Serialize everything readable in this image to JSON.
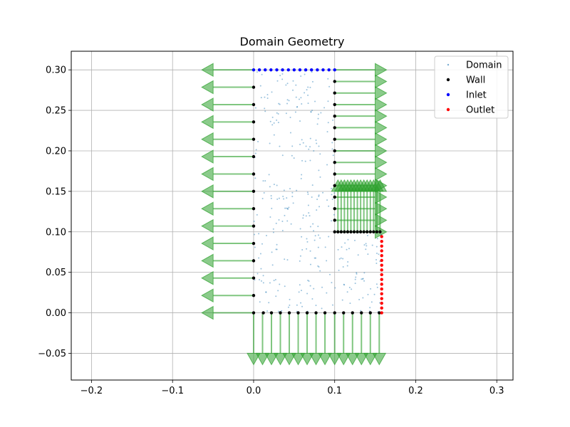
{
  "chart_data": {
    "type": "scatter",
    "title": "Domain Geometry",
    "xlabel": "",
    "ylabel": "",
    "xlim": [
      -0.225,
      0.32
    ],
    "ylim": [
      -0.083,
      0.323
    ],
    "xticks": [
      -0.2,
      -0.1,
      0.0,
      0.1,
      0.2,
      0.3
    ],
    "xtick_labels": [
      "−0.2",
      "−0.1",
      "0.0",
      "0.1",
      "0.2",
      "0.3"
    ],
    "yticks": [
      -0.05,
      0.0,
      0.05,
      0.1,
      0.15,
      0.2,
      0.25,
      0.3
    ],
    "ytick_labels": [
      "−0.05",
      "0.00",
      "0.05",
      "0.10",
      "0.15",
      "0.20",
      "0.25",
      "0.30"
    ],
    "grid": true,
    "legend_position": "top-right",
    "series": [
      {
        "name": "Domain",
        "color": "#1f77b4",
        "marker": "small-dot",
        "generated": true,
        "count": 320,
        "regions": [
          {
            "x": [
              0.0,
              0.1
            ],
            "y": [
              0.0,
              0.3
            ],
            "share": 0.8
          },
          {
            "x": [
              0.1,
              0.158
            ],
            "y": [
              0.0,
              0.1
            ],
            "share": 0.2
          }
        ]
      },
      {
        "name": "Wall",
        "color": "#000000",
        "marker": "dot",
        "points": [
          [
            0.0,
            0.0
          ],
          [
            0.0,
            0.0214
          ],
          [
            0.0,
            0.0429
          ],
          [
            0.0,
            0.0643
          ],
          [
            0.0,
            0.0857
          ],
          [
            0.0,
            0.1071
          ],
          [
            0.0,
            0.1286
          ],
          [
            0.0,
            0.15
          ],
          [
            0.0,
            0.1714
          ],
          [
            0.0,
            0.1929
          ],
          [
            0.0,
            0.2143
          ],
          [
            0.0,
            0.2357
          ],
          [
            0.0,
            0.2571
          ],
          [
            0.0,
            0.2786
          ],
          [
            0.1,
            0.2857
          ],
          [
            0.1,
            0.2714
          ],
          [
            0.1,
            0.2571
          ],
          [
            0.1,
            0.2429
          ],
          [
            0.1,
            0.2286
          ],
          [
            0.1,
            0.2143
          ],
          [
            0.1,
            0.2
          ],
          [
            0.1,
            0.1857
          ],
          [
            0.1,
            0.1714
          ],
          [
            0.1,
            0.1571
          ],
          [
            0.1,
            0.1429
          ],
          [
            0.1,
            0.1286
          ],
          [
            0.1,
            0.1143
          ],
          [
            0.1,
            0.1
          ],
          [
            0.104,
            0.1
          ],
          [
            0.108,
            0.1
          ],
          [
            0.112,
            0.1
          ],
          [
            0.116,
            0.1
          ],
          [
            0.12,
            0.1
          ],
          [
            0.124,
            0.1
          ],
          [
            0.128,
            0.1
          ],
          [
            0.132,
            0.1
          ],
          [
            0.136,
            0.1
          ],
          [
            0.14,
            0.1
          ],
          [
            0.144,
            0.1
          ],
          [
            0.148,
            0.1
          ],
          [
            0.152,
            0.1
          ],
          [
            0.156,
            0.1
          ],
          [
            0.012,
            0.0
          ],
          [
            0.022,
            0.0
          ],
          [
            0.033,
            0.0
          ],
          [
            0.044,
            0.0
          ],
          [
            0.055,
            0.0
          ],
          [
            0.066,
            0.0
          ],
          [
            0.077,
            0.0
          ],
          [
            0.088,
            0.0
          ],
          [
            0.1,
            0.0
          ],
          [
            0.111,
            0.0
          ],
          [
            0.122,
            0.0
          ],
          [
            0.133,
            0.0
          ],
          [
            0.144,
            0.0
          ],
          [
            0.155,
            0.0
          ]
        ]
      },
      {
        "name": "Inlet",
        "color": "#0000ff",
        "marker": "dot",
        "points": [
          [
            0.0,
            0.3
          ],
          [
            0.0071,
            0.3
          ],
          [
            0.0143,
            0.3
          ],
          [
            0.0214,
            0.3
          ],
          [
            0.0286,
            0.3
          ],
          [
            0.0357,
            0.3
          ],
          [
            0.0429,
            0.3
          ],
          [
            0.05,
            0.3
          ],
          [
            0.0571,
            0.3
          ],
          [
            0.0643,
            0.3
          ],
          [
            0.0714,
            0.3
          ],
          [
            0.0786,
            0.3
          ],
          [
            0.0857,
            0.3
          ],
          [
            0.0929,
            0.3
          ],
          [
            0.1,
            0.3
          ]
        ]
      },
      {
        "name": "Outlet",
        "color": "#ff0000",
        "marker": "dot",
        "points": [
          [
            0.158,
            0.0
          ],
          [
            0.158,
            0.0059
          ],
          [
            0.158,
            0.0118
          ],
          [
            0.158,
            0.0176
          ],
          [
            0.158,
            0.0235
          ],
          [
            0.158,
            0.0294
          ],
          [
            0.158,
            0.0353
          ],
          [
            0.158,
            0.0412
          ],
          [
            0.158,
            0.0471
          ],
          [
            0.158,
            0.0529
          ],
          [
            0.158,
            0.0588
          ],
          [
            0.158,
            0.0647
          ],
          [
            0.158,
            0.0706
          ],
          [
            0.158,
            0.0765
          ],
          [
            0.158,
            0.0824
          ],
          [
            0.158,
            0.0882
          ],
          [
            0.158,
            0.0941
          ]
        ]
      }
    ],
    "arrows": {
      "name": "normals",
      "color": "#2ca02c",
      "sets": [
        {
          "anchors_x": [
            0.0
          ],
          "anchors_y": [
            0.0,
            0.0214,
            0.0429,
            0.0643,
            0.0857,
            0.1071,
            0.1286,
            0.15,
            0.1714,
            0.1929,
            0.2143,
            0.2357,
            0.2571,
            0.2786,
            0.3
          ],
          "dx": -0.064,
          "dy": 0
        },
        {
          "anchors_x": [
            0.1
          ],
          "anchors_y": [
            0.1,
            0.1143,
            0.1286,
            0.1429,
            0.1571,
            0.1714,
            0.1857,
            0.2,
            0.2143,
            0.2286,
            0.2429,
            0.2571,
            0.2714,
            0.2857,
            0.3
          ],
          "dx": 0.064,
          "dy": 0
        },
        {
          "anchors_x": [
            0.104,
            0.108,
            0.112,
            0.116,
            0.12,
            0.124,
            0.128,
            0.132,
            0.136,
            0.14,
            0.144,
            0.148,
            0.152,
            0.156
          ],
          "anchors_y": [
            0.1
          ],
          "dx": 0,
          "dy": 0.064
        },
        {
          "anchors_x": [
            0.0,
            0.011,
            0.022,
            0.033,
            0.044,
            0.055,
            0.066,
            0.077,
            0.088,
            0.1,
            0.111,
            0.122,
            0.133,
            0.144,
            0.155
          ],
          "anchors_y": [
            0.0
          ],
          "dx": 0,
          "dy": -0.064
        }
      ]
    }
  }
}
